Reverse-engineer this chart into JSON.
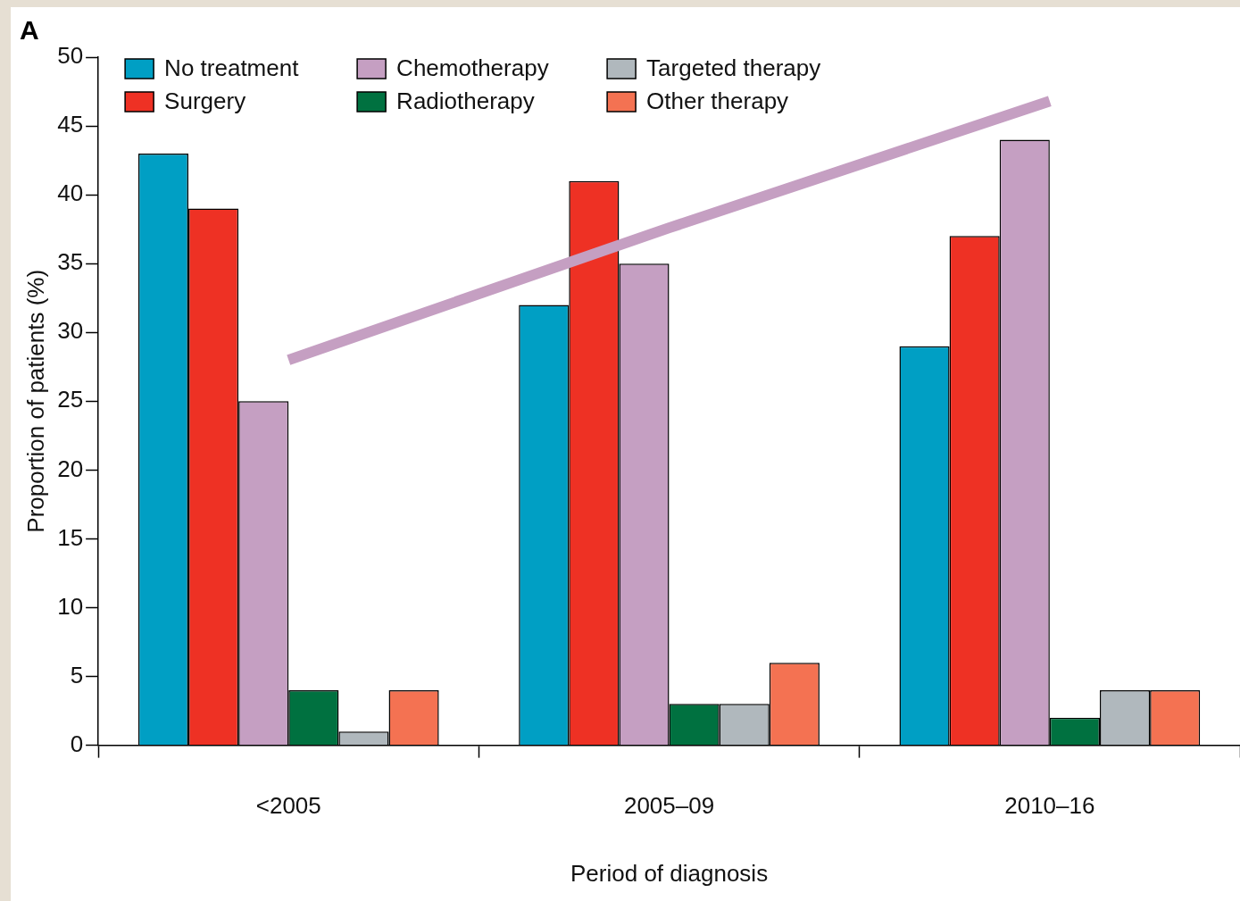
{
  "chart_data": {
    "type": "bar",
    "title": "A",
    "xlabel": "Period of diagnosis",
    "ylabel": "Proportion of patients (%)",
    "categories": [
      "<2005",
      "2005–09",
      "2010–16"
    ],
    "series": [
      {
        "name": "No treatment",
        "color": "#009fc4",
        "values": [
          43,
          32,
          29
        ]
      },
      {
        "name": "Surgery",
        "color": "#ee3124",
        "values": [
          39,
          41,
          37
        ]
      },
      {
        "name": "Chemotherapy",
        "color": "#c59fc2",
        "values": [
          25,
          35,
          44
        ]
      },
      {
        "name": "Radiotherapy",
        "color": "#007140",
        "values": [
          4,
          3,
          2
        ]
      },
      {
        "name": "Targeted therapy",
        "color": "#b0b8bd",
        "values": [
          1,
          3,
          4
        ]
      },
      {
        "name": "Other therapy",
        "color": "#f47252",
        "values": [
          4,
          6,
          4
        ]
      },
      {
        "type": "line",
        "color": "#c59fc2",
        "values": [
          28,
          37.6,
          46.8
        ]
      }
    ],
    "ylim": [
      0,
      50
    ],
    "yticks": [
      0,
      5,
      10,
      15,
      20,
      25,
      30,
      35,
      40,
      45,
      50
    ],
    "grid": false,
    "legend": "top left",
    "marker": "none",
    "line_style": "solid"
  }
}
